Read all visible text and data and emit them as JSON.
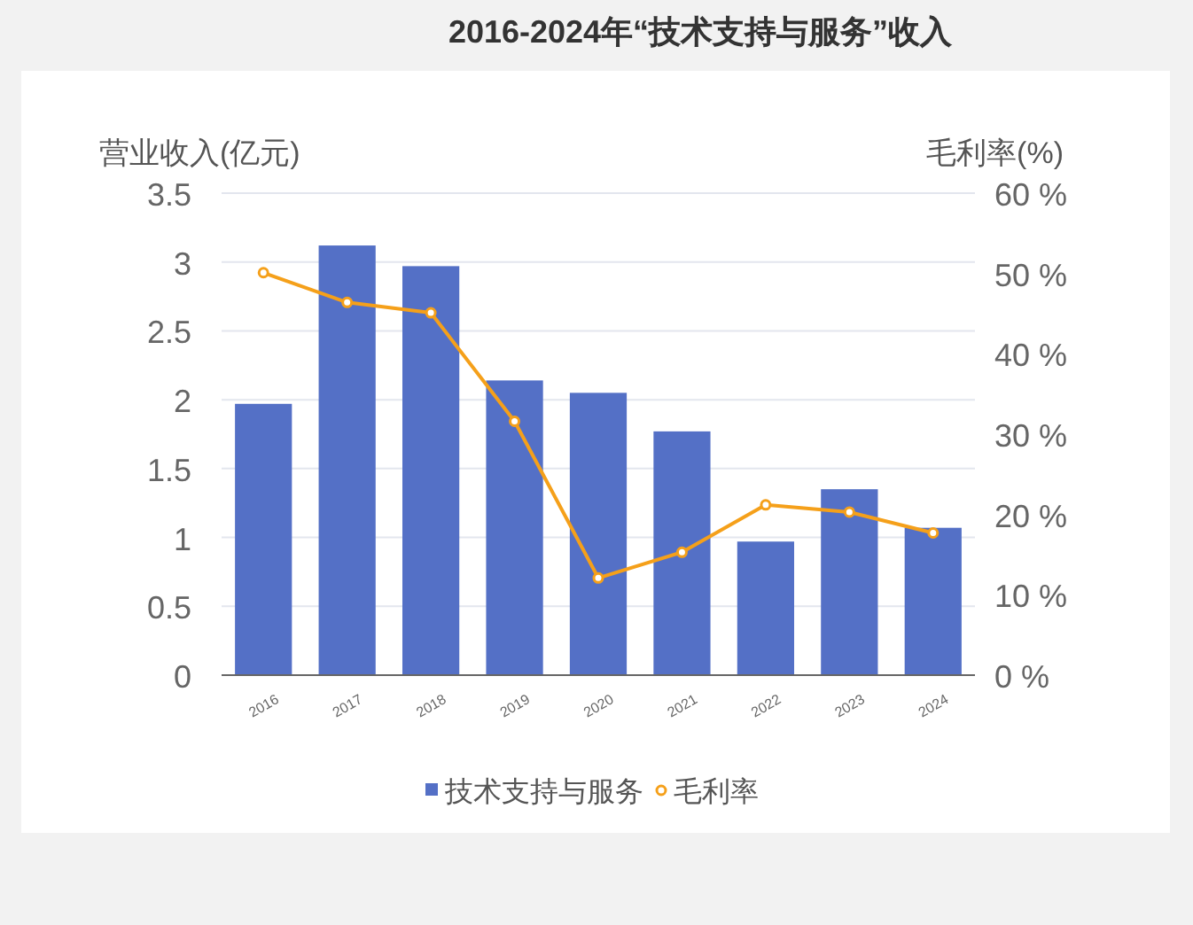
{
  "chart_data": {
    "type": "bar",
    "title": "2016-2024年“技术支持与服务”收入",
    "ylabel": "营业收入(亿元)",
    "y2label": "毛利率(%)",
    "categories": [
      "2016",
      "2017",
      "2018",
      "2019",
      "2020",
      "2021",
      "2022",
      "2023",
      "2024"
    ],
    "series": [
      {
        "name": "技术支持与服务",
        "color": "#5470c6",
        "values": [
          1.97,
          3.12,
          2.97,
          2.14,
          2.05,
          1.77,
          0.97,
          1.35,
          1.07
        ]
      },
      {
        "name": "毛利率",
        "type": "line",
        "axis": "y2",
        "color": "#f5a01a",
        "marker": "circle",
        "values": [
          50.1,
          46.4,
          45.1,
          31.6,
          12.1,
          15.3,
          21.2,
          20.3,
          17.7
        ]
      }
    ],
    "ylim": [
      0,
      3.5
    ],
    "yticks": [
      0,
      0.5,
      1,
      1.5,
      2,
      2.5,
      3,
      3.5
    ],
    "y2lim": [
      0,
      60
    ],
    "y2ticks": [
      {
        "value": 0,
        "label": "0 %"
      },
      {
        "value": 10,
        "label": "10 %"
      },
      {
        "value": 20,
        "label": "20 %"
      },
      {
        "value": 30,
        "label": "30 %"
      },
      {
        "value": 40,
        "label": "40 %"
      },
      {
        "value": 50,
        "label": "50 %"
      },
      {
        "value": 60,
        "label": "60 %"
      }
    ],
    "grid": "y",
    "legend": "bottom"
  }
}
